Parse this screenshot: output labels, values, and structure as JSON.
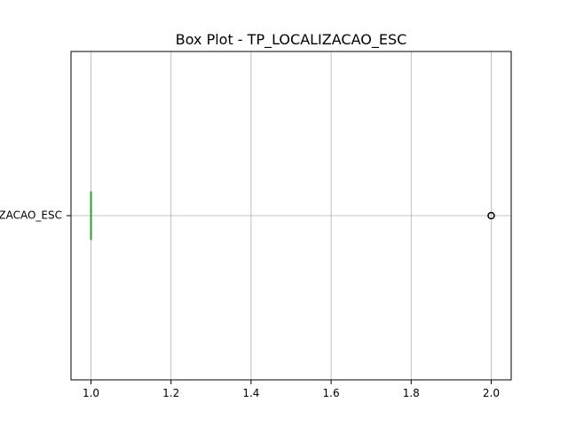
{
  "chart_data": {
    "type": "box",
    "title": "Box Plot - TP_LOCALIZACAO_ESC",
    "orientation": "horizontal",
    "categories": [
      "TP_LOCALIZACAO_ESC"
    ],
    "category_tick_label": "TP_LOCALIZACAO_ESC",
    "xlim": [
      0.95,
      2.05
    ],
    "x_ticks": [
      1.0,
      1.2,
      1.4,
      1.6,
      1.8,
      2.0
    ],
    "x_tick_labels": [
      "1.0",
      "1.2",
      "1.4",
      "1.6",
      "1.8",
      "2.0"
    ],
    "grid": true,
    "boxes": [
      {
        "name": "TP_LOCALIZACAO_ESC",
        "whisker_low": 1.0,
        "q1": 1.0,
        "median": 1.0,
        "q3": 1.0,
        "whisker_high": 1.0,
        "outliers": [
          2.0
        ]
      }
    ],
    "colors": {
      "box": "#1f77b4",
      "median": "#2ca02c",
      "grid": "#b0b0b0",
      "outlier_edge": "#000000"
    }
  }
}
